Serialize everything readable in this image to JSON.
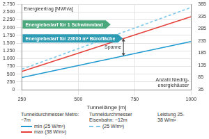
{
  "chart_data": {
    "type": "line",
    "xlabel": "Tunnellänge [m]",
    "ylabel": "Energieertrag [MWh/a]",
    "y2label": "Anzahl Niedrig-energiehäuser",
    "x": [
      250,
      1000
    ],
    "series": [
      {
        "name": "min (25 W/m²)",
        "group": "Tunneldurchmesser Metro: ~7m",
        "color": "#1f9bd1",
        "line_style": "solid",
        "values": [
          390,
          1550
        ]
      },
      {
        "name": "max (38 W/m²)",
        "group": "Tunneldurchmesser Metro: ~7m",
        "color": "#e5413b",
        "line_style": "solid",
        "values": [
          590,
          2350
        ]
      },
      {
        "name": "(25 W/m²)",
        "group": "Tunneldurchmesser Eisenbahn: ~12m",
        "color": "#7cc8ea",
        "line_style": "dashed",
        "values": [
          660,
          2650
        ]
      }
    ],
    "legend_note": "Leistung 25-38 W/m²",
    "xlim": [
      250,
      1000
    ],
    "xticks": [
      250,
      500,
      750,
      1000
    ],
    "ylim": [
      0,
      2750
    ],
    "yticks": [
      0,
      250,
      500,
      750,
      {
        "value": 1000,
        "label": "1.000"
      },
      {
        "value": 1250,
        "label": "1.250"
      },
      {
        "value": 1500,
        "label": "1.500"
      },
      {
        "value": 1750,
        "label": "1.750"
      },
      {
        "value": 2000,
        "label": "2.000"
      },
      {
        "value": 2250,
        "label": "2.250"
      },
      {
        "value": 2500,
        "label": "2.500"
      },
      {
        "value": 2750,
        "label": "2.750"
      }
    ],
    "y2lim": [
      35,
      385
    ],
    "y2ticks": [
      35,
      85,
      135,
      185,
      235,
      285,
      335,
      385
    ],
    "annotations": [
      {
        "text": "Energiebedarf für 1 Schwimmbad",
        "y": 2100,
        "color": "#4aa87c"
      },
      {
        "text": "Energiebedarf für 23000 m² Bürofläche",
        "y": 1650,
        "color": "#2e9bb5"
      }
    ],
    "span": {
      "text": "Spanne",
      "x": 700
    },
    "grid": true,
    "legend": "bottom"
  }
}
